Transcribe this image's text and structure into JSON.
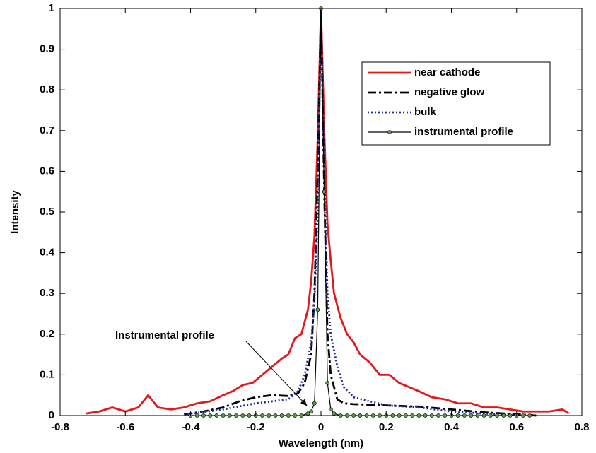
{
  "chart_data": {
    "type": "line",
    "xlabel": "Wavelength (nm)",
    "ylabel": "Intensity",
    "annotation": "Instrumental profile",
    "xlim": [
      -0.8,
      0.8
    ],
    "xticks": [
      -0.8,
      -0.6,
      -0.4,
      -0.2,
      0,
      0.2,
      0.4,
      0.6,
      0.8
    ],
    "ylim": [
      0,
      1
    ],
    "yticks": [
      0,
      0.1,
      0.2,
      0.3,
      0.4,
      0.5,
      0.6,
      0.7,
      0.8,
      0.9,
      1
    ],
    "grid": false,
    "legend": "upper right",
    "series": [
      {
        "name": "near cathode",
        "color": "#e31a1c",
        "linestyle": "solid",
        "x": [
          -0.72,
          -0.68,
          -0.64,
          -0.6,
          -0.56,
          -0.53,
          -0.5,
          -0.46,
          -0.42,
          -0.38,
          -0.34,
          -0.3,
          -0.27,
          -0.24,
          -0.21,
          -0.18,
          -0.15,
          -0.12,
          -0.1,
          -0.08,
          -0.06,
          -0.04,
          -0.03,
          -0.02,
          -0.01,
          0,
          0.01,
          0.02,
          0.03,
          0.04,
          0.06,
          0.08,
          0.1,
          0.12,
          0.15,
          0.18,
          0.21,
          0.24,
          0.27,
          0.3,
          0.34,
          0.38,
          0.42,
          0.46,
          0.5,
          0.54,
          0.58,
          0.62,
          0.66,
          0.7,
          0.74,
          0.76
        ],
        "values": [
          0.005,
          0.01,
          0.02,
          0.01,
          0.02,
          0.05,
          0.02,
          0.015,
          0.02,
          0.03,
          0.035,
          0.05,
          0.06,
          0.075,
          0.08,
          0.1,
          0.12,
          0.14,
          0.15,
          0.19,
          0.2,
          0.26,
          0.33,
          0.44,
          0.68,
          1,
          0.7,
          0.47,
          0.38,
          0.3,
          0.24,
          0.2,
          0.18,
          0.15,
          0.13,
          0.1,
          0.1,
          0.08,
          0.07,
          0.06,
          0.045,
          0.04,
          0.03,
          0.03,
          0.02,
          0.02,
          0.015,
          0.01,
          0.01,
          0.01,
          0.015,
          0.005
        ]
      },
      {
        "name": "negative glow",
        "color": "#000000",
        "linestyle": "dashdot",
        "x": [
          -0.42,
          -0.36,
          -0.3,
          -0.25,
          -0.2,
          -0.15,
          -0.1,
          -0.07,
          -0.05,
          -0.03,
          -0.02,
          -0.01,
          0,
          0.01,
          0.02,
          0.03,
          0.05,
          0.07,
          0.1,
          0.2,
          0.3,
          0.4,
          0.5,
          0.6,
          0.66
        ],
        "values": [
          0.003,
          0.01,
          0.02,
          0.035,
          0.045,
          0.05,
          0.048,
          0.055,
          0.08,
          0.15,
          0.3,
          0.6,
          1,
          0.55,
          0.2,
          0.1,
          0.04,
          0.03,
          0.028,
          0.025,
          0.022,
          0.015,
          0.008,
          0.003,
          0
        ]
      },
      {
        "name": "bulk",
        "color": "#1f2a9c",
        "linestyle": "dotted",
        "x": [
          -0.42,
          -0.3,
          -0.2,
          -0.1,
          -0.07,
          -0.05,
          -0.03,
          -0.02,
          -0.01,
          0,
          0.01,
          0.02,
          0.03,
          0.05,
          0.07,
          0.1,
          0.2,
          0.3,
          0.4,
          0.5,
          0.6
        ],
        "values": [
          0.002,
          0.015,
          0.03,
          0.04,
          0.06,
          0.1,
          0.18,
          0.28,
          0.5,
          1,
          0.6,
          0.3,
          0.2,
          0.12,
          0.07,
          0.045,
          0.025,
          0.02,
          0.01,
          0.005,
          0
        ]
      },
      {
        "name": "instrumental profile",
        "color": "#000000",
        "linestyle": "solid",
        "marker": "circle",
        "marker_color": "#5a9a4a",
        "x": [
          -0.4,
          -0.38,
          -0.36,
          -0.34,
          -0.32,
          -0.3,
          -0.28,
          -0.26,
          -0.24,
          -0.22,
          -0.2,
          -0.18,
          -0.16,
          -0.14,
          -0.12,
          -0.1,
          -0.08,
          -0.06,
          -0.04,
          -0.03,
          -0.02,
          -0.01,
          0,
          0.01,
          0.02,
          0.03,
          0.04,
          0.06,
          0.08,
          0.1,
          0.12,
          0.14,
          0.16,
          0.18,
          0.2,
          0.22,
          0.24,
          0.26,
          0.28,
          0.3,
          0.32,
          0.34,
          0.36,
          0.38,
          0.4,
          0.42,
          0.44,
          0.46,
          0.48,
          0.5,
          0.52,
          0.54,
          0.56,
          0.58,
          0.6,
          0.62,
          0.64
        ],
        "values": [
          0,
          0,
          0,
          0,
          0,
          0,
          0,
          0,
          0,
          0,
          0,
          0,
          0,
          0,
          0,
          0,
          0,
          0,
          0.005,
          0.01,
          0.03,
          0.26,
          1,
          0.55,
          0.08,
          0.015,
          0.005,
          0,
          0,
          0,
          0,
          0,
          0,
          0,
          0,
          0,
          0,
          0,
          0,
          0,
          0,
          0,
          0,
          0,
          0,
          0,
          0,
          0,
          0,
          0,
          0,
          0,
          0,
          0,
          0,
          0,
          0
        ]
      }
    ]
  }
}
